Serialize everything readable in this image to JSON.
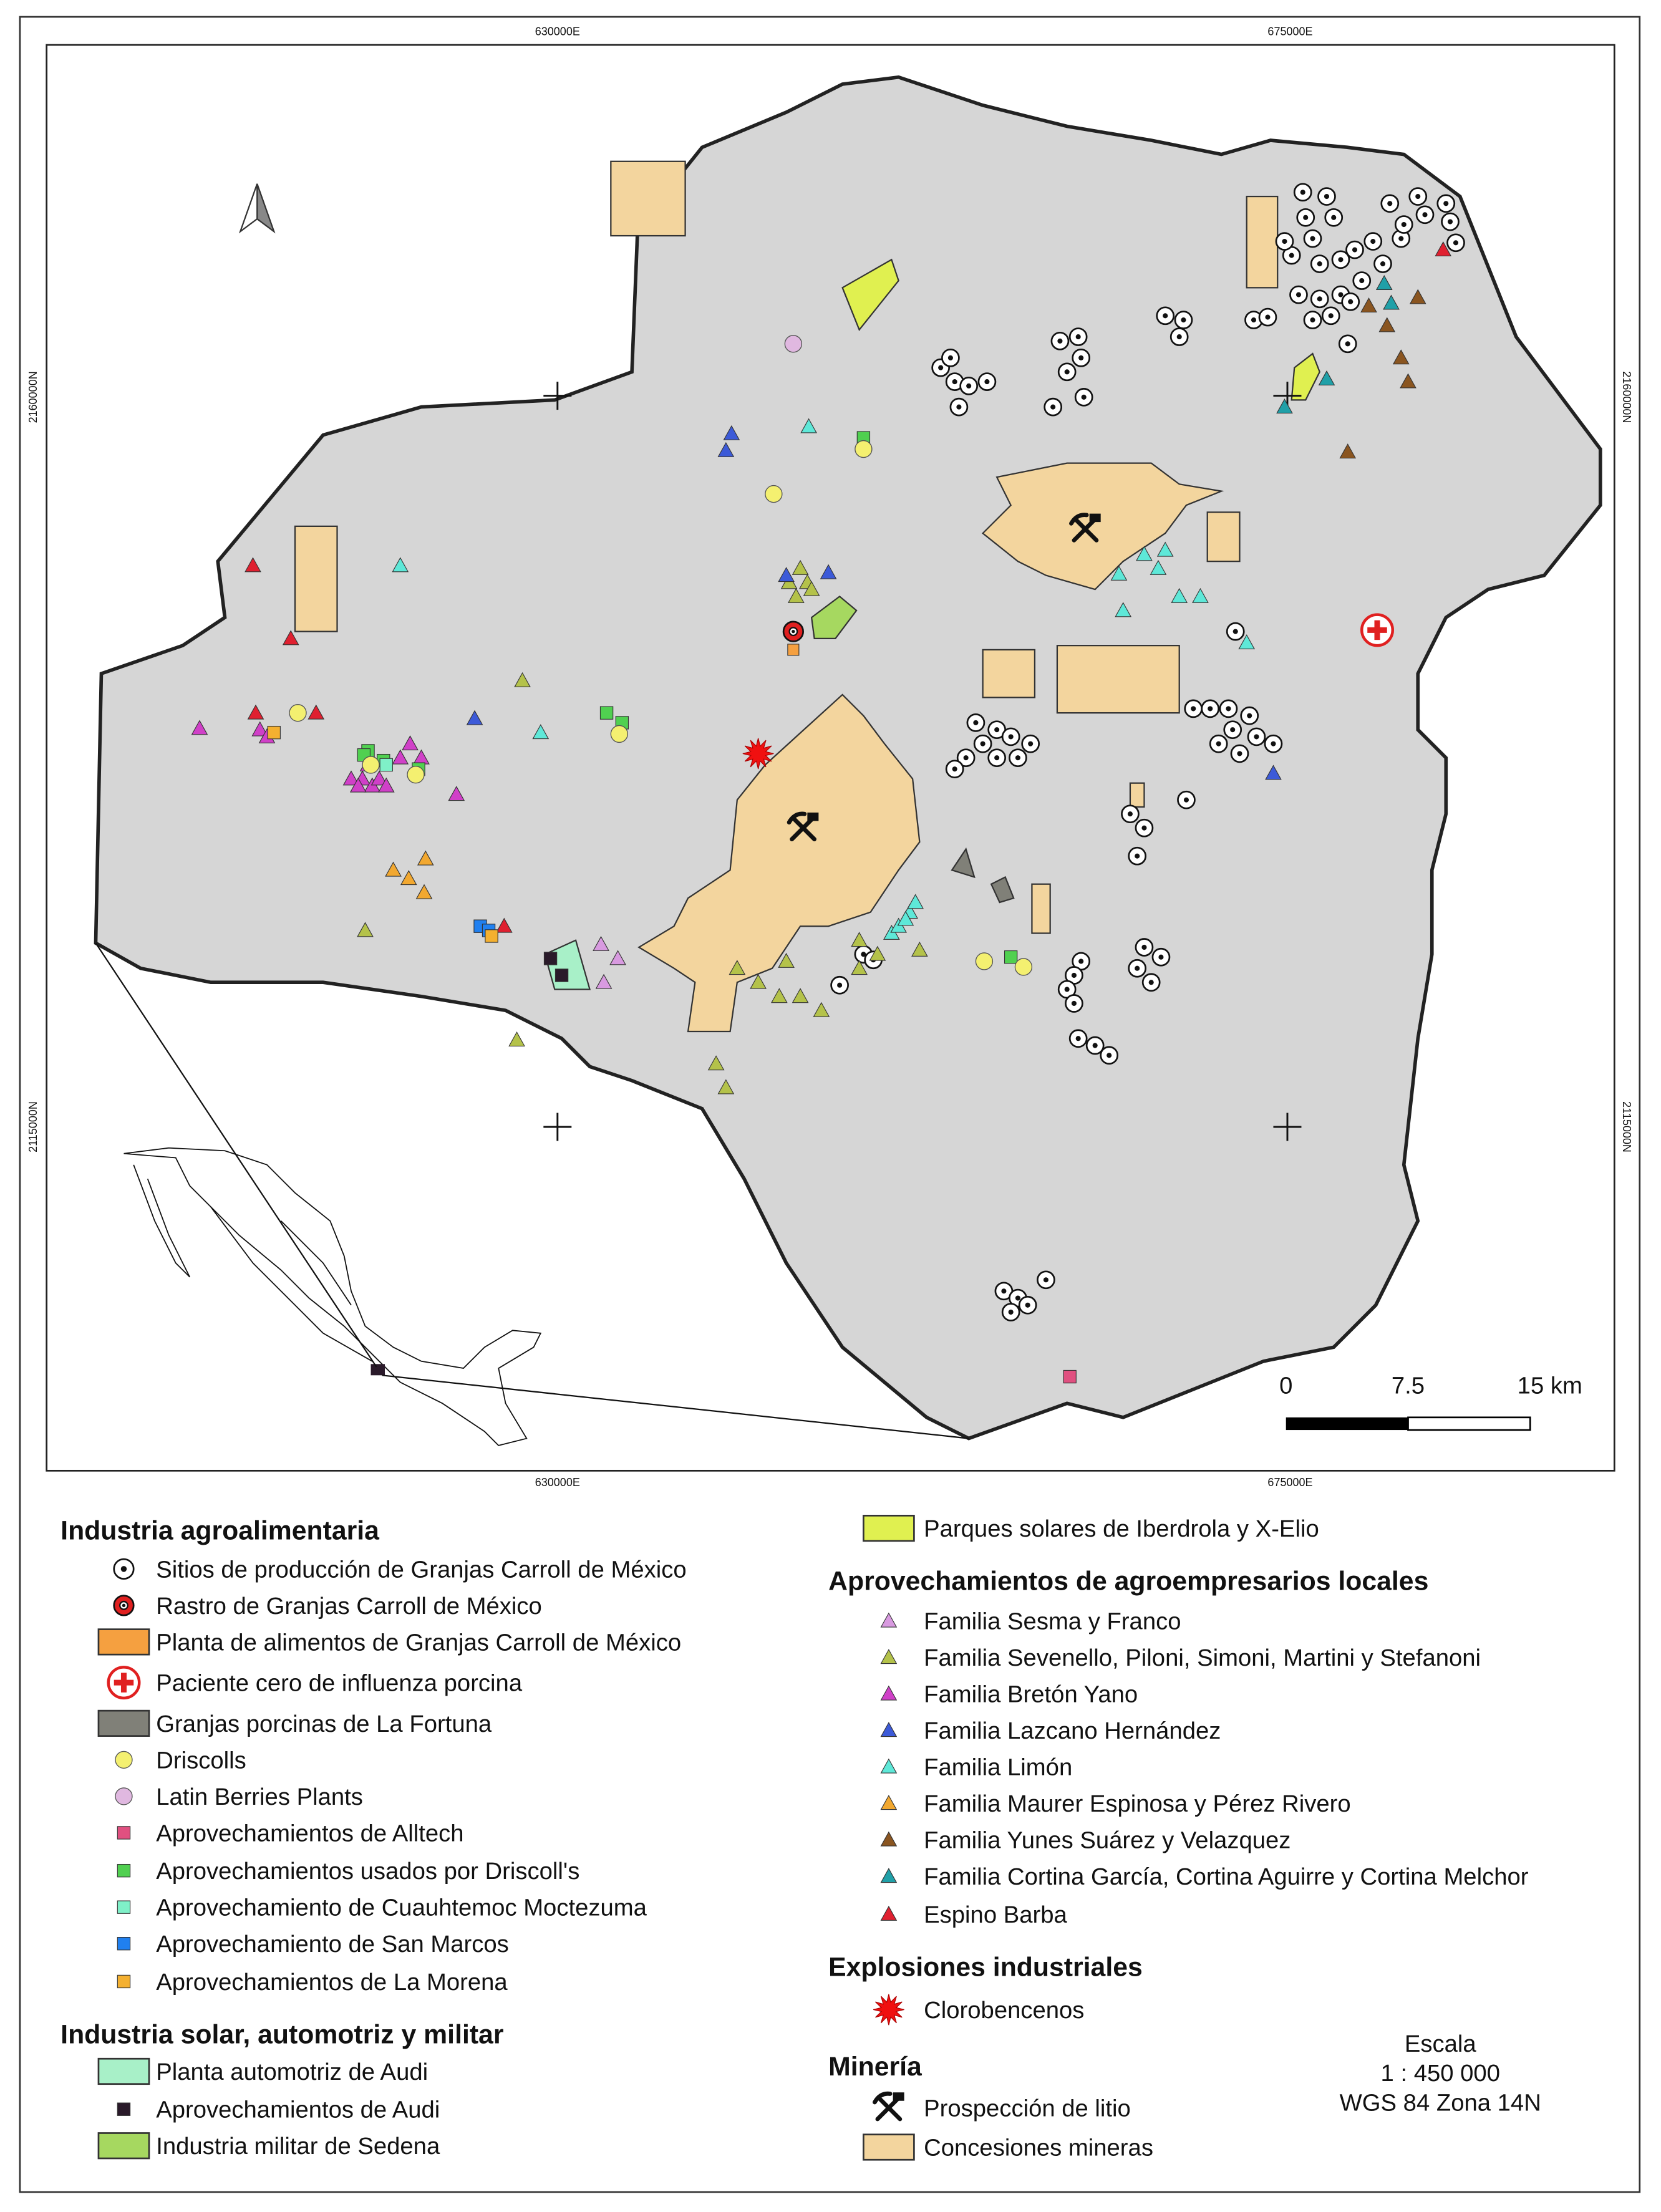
{
  "coordinates": {
    "top": [
      "630000E",
      "675000E"
    ],
    "bottom": [
      "630000E",
      "675000E"
    ],
    "left": [
      "2160000N",
      "2115000N"
    ],
    "right": [
      "2160000N",
      "2115000N"
    ]
  },
  "scale_bar": {
    "labels": [
      "0",
      "7.5",
      "15 km"
    ]
  },
  "scale_info": {
    "title": "Escala",
    "ratio": "1 : 450 000",
    "projection": "WGS 84 Zona 14N"
  },
  "colors": {
    "terrain": "#d4d4d4",
    "concession": "#f3d59e",
    "solar": "#e0f050",
    "sedena": "#a6d860",
    "audi_plant": "#a8f0c8",
    "fortuna": "#808078",
    "sesma": "#d89ae0",
    "sevenello": "#b4c24a",
    "breton": "#d040c8",
    "lazcano": "#3c5ad8",
    "limon": "#5ee8d8",
    "maurer": "#f2a830",
    "yunes": "#8a5520",
    "cortina": "#20a0a8",
    "espino": "#e02030"
  },
  "legend": {
    "agro": {
      "title": "Industria agroalimentaria",
      "items": [
        {
          "label": "Sitios de producción de Granjas Carroll de México",
          "icon": "dotted-circle"
        },
        {
          "label": "Rastro de Granjas Carroll de México",
          "icon": "red-dotted-circle"
        },
        {
          "label": "Planta de alimentos de Granjas Carroll de México",
          "icon": "orange-box"
        },
        {
          "label": "Paciente cero de influenza porcina",
          "icon": "red-cross-circle"
        },
        {
          "label": "Granjas porcinas de La Fortuna",
          "icon": "gray-box"
        },
        {
          "label": "Driscolls",
          "icon": "yellow-circle"
        },
        {
          "label": "Latin Berries Plants",
          "icon": "pink-circle"
        },
        {
          "label": "Aprovechamientos de Alltech",
          "icon": "pink-square"
        },
        {
          "label": "Aprovechamientos usados por Driscoll's",
          "icon": "green-square"
        },
        {
          "label": "Aprovechamiento de Cuauhtemoc Moctezuma",
          "icon": "aqua-square"
        },
        {
          "label": "Aprovechamiento de San Marcos",
          "icon": "blue-square"
        },
        {
          "label": "Aprovechamientos de La Morena",
          "icon": "orange-square"
        }
      ]
    },
    "solar": {
      "title": "Industria solar, automotriz y militar",
      "items": [
        {
          "label": "Planta automotriz de Audi",
          "icon": "mint-box"
        },
        {
          "label": "Aprovechamientos de Audi",
          "icon": "black-square"
        },
        {
          "label": "Industria militar de Sedena",
          "icon": "green-box"
        },
        {
          "label": "Parques solares de Iberdrola y X-Elio",
          "icon": "yellow-box"
        }
      ]
    },
    "local": {
      "title": "Aprovechamientos de agroempresarios locales",
      "items": [
        {
          "label": "Familia Sesma y Franco",
          "color": "#d89ae0"
        },
        {
          "label": "Familia Sevenello, Piloni, Simoni, Martini y Stefanoni",
          "color": "#b4c24a"
        },
        {
          "label": "Familia Bretón Yano",
          "color": "#d040c8"
        },
        {
          "label": "Familia Lazcano Hernández",
          "color": "#3c5ad8"
        },
        {
          "label": "Familia Limón",
          "color": "#5ee8d8"
        },
        {
          "label": "Familia Maurer Espinosa y Pérez Rivero",
          "color": "#f2a830"
        },
        {
          "label": "Familia Yunes Suárez y Velazquez",
          "color": "#8a5520"
        },
        {
          "label": "Familia Cortina García, Cortina Aguirre y Cortina Melchor",
          "color": "#20a0a8"
        },
        {
          "label": "Espino Barba",
          "color": "#e02030"
        }
      ]
    },
    "explosions": {
      "title": "Explosiones industriales",
      "items": [
        {
          "label": "Clorobencenos",
          "icon": "explosion"
        }
      ]
    },
    "mining": {
      "title": "Minería",
      "items": [
        {
          "label": "Prospección de litio",
          "icon": "pickaxe-hammer"
        },
        {
          "label": "Concesiones mineras",
          "icon": "beige-box"
        }
      ]
    }
  }
}
